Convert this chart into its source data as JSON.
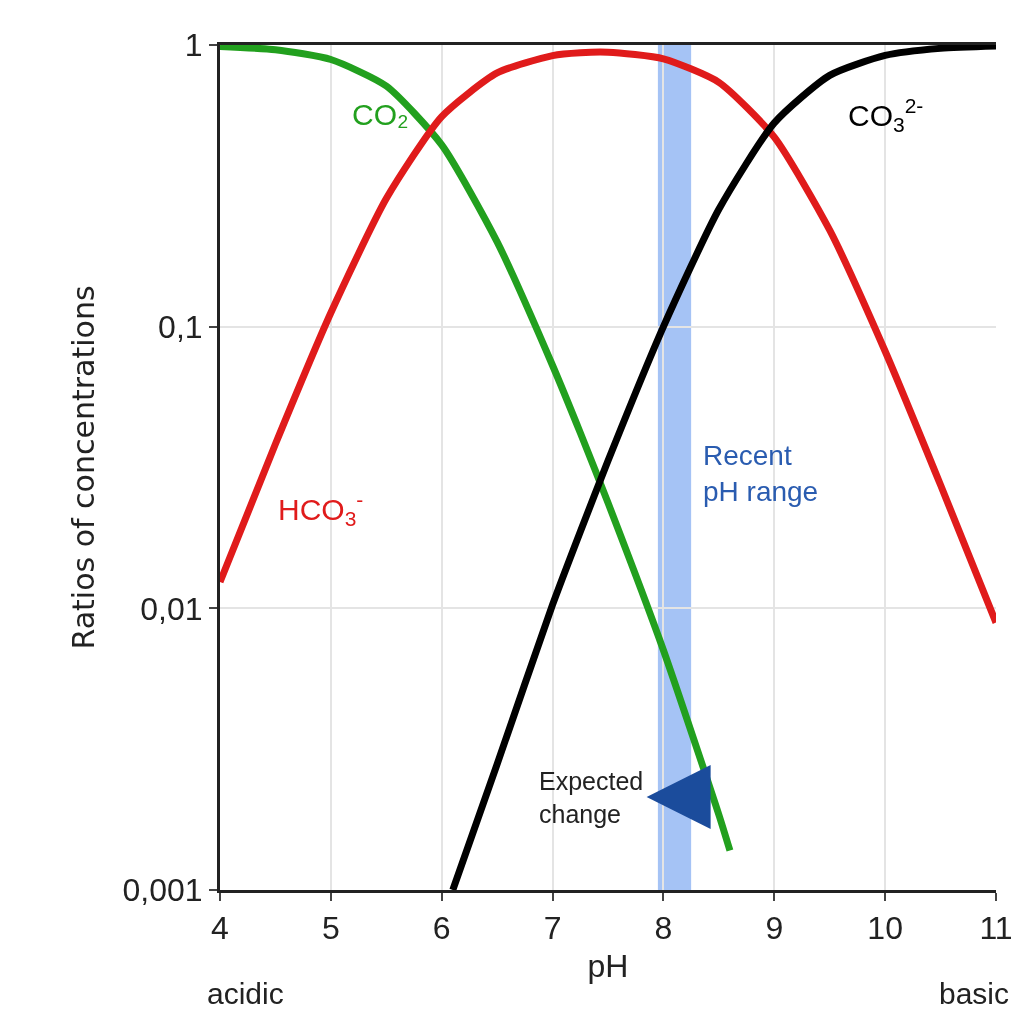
{
  "chart_data": {
    "type": "line",
    "xlabel": "pH",
    "ylabel": "Ratios of concentrations",
    "xlim": [
      4,
      11
    ],
    "ylim": [
      0.001,
      1
    ],
    "log": true,
    "grid": true,
    "legend": false,
    "marker": "none",
    "line_style": "solid",
    "xticks": [
      4,
      5,
      6,
      7,
      8,
      9,
      10,
      11
    ],
    "yticks": [
      {
        "value": 0.001,
        "label": "0,001"
      },
      {
        "value": 0.01,
        "label": "0,01"
      },
      {
        "value": 0.1,
        "label": "0,1"
      },
      1
    ],
    "series": [
      {
        "name": "CO₂",
        "color": "#22a01e",
        "x": [
          4,
          4.5,
          5,
          5.5,
          6,
          6.5,
          7,
          7.25,
          7.5,
          8,
          8.5,
          8.6
        ],
        "values": [
          0.988,
          0.962,
          0.888,
          0.715,
          0.442,
          0.2,
          0.0728,
          0.042,
          0.0237,
          0.0071,
          0.00185,
          0.00138
        ]
      },
      {
        "name": "HCO$_{3}$$^{-}$",
        "color": "#e01b1b",
        "x": [
          4,
          4.5,
          5,
          5.5,
          6,
          6.5,
          7,
          7.25,
          7.5,
          8,
          8.5,
          9,
          9.5,
          10,
          10.5,
          11
        ],
        "values": [
          0.0124,
          0.0383,
          0.112,
          0.285,
          0.557,
          0.796,
          0.917,
          0.939,
          0.943,
          0.893,
          0.737,
          0.471,
          0.22,
          0.0818,
          0.0274,
          0.0089
        ]
      },
      {
        "name": "CO$_{3}$$^{2-}$",
        "color": "#000000",
        "x": [
          6.1,
          6.5,
          7,
          7.25,
          7.5,
          8,
          8.5,
          9,
          9.5,
          10,
          10.5,
          11
        ],
        "values": [
          0.001,
          0.0028,
          0.0103,
          0.0187,
          0.0334,
          0.1,
          0.261,
          0.529,
          0.78,
          0.918,
          0.973,
          0.991
        ]
      }
    ],
    "bands": [
      {
        "axis": "x",
        "from": 7.95,
        "to": 8.25,
        "label": "Recent pH range",
        "color": "#8fb4f2"
      }
    ],
    "annotations": [
      "acidic",
      "basic",
      "Expected change"
    ]
  }
}
